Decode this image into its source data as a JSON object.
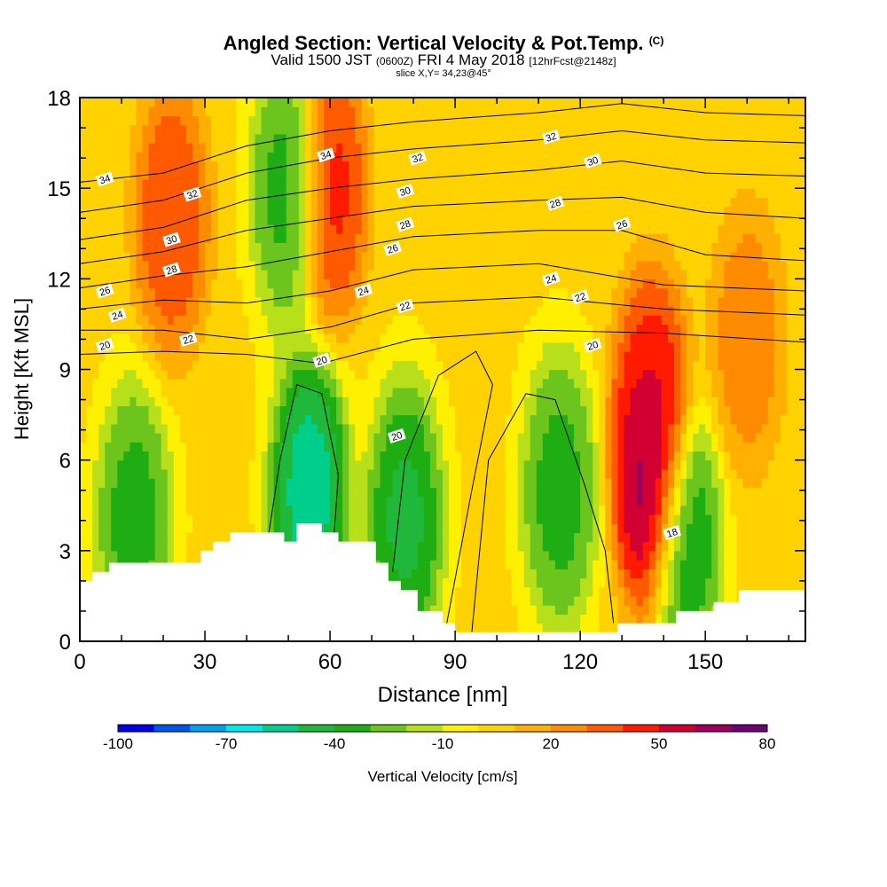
{
  "header": {
    "title_main": "Angled Section: Vertical Velocity & Pot.Temp.",
    "title_mark": "(C)",
    "valid_prefix": "Valid 1500 JST",
    "valid_utc": "(0600Z)",
    "valid_date": "FRI 4 May 2018",
    "valid_fcst": "[12hrFcst@2148z]",
    "slice_label": "slice X,Y= 34,23@45°"
  },
  "colors": {
    "bins": [
      "#0000ee",
      "#0055ee",
      "#00a0ee",
      "#00e8e8",
      "#00cf8c",
      "#1fb83a",
      "#1ead13",
      "#6cc51c",
      "#b7df1a",
      "#fff000",
      "#ffd200",
      "#ffb000",
      "#ff8c00",
      "#ff5a00",
      "#ff1a00",
      "#d20032",
      "#a0005a",
      "#6e0078"
    ],
    "contour": "#000000",
    "terrain": "#ffffff"
  },
  "chart_data": {
    "type": "heatmap",
    "xlabel": "Distance [nm]",
    "ylabel": "Height [Kft MSL]",
    "xlim": [
      0,
      174
    ],
    "ylim": [
      0,
      18
    ],
    "x_ticks": [
      "0",
      "30",
      "60",
      "90",
      "120",
      "150"
    ],
    "y_ticks": [
      "0",
      "3",
      "6",
      "9",
      "12",
      "15",
      "18"
    ],
    "colorbar": {
      "label": "Vertical Velocity [cm/s]",
      "levels": [
        -100,
        -90,
        -80,
        -70,
        -60,
        -50,
        -40,
        -30,
        -20,
        -10,
        0,
        10,
        20,
        30,
        40,
        50,
        60,
        70,
        80
      ],
      "tick_labels": [
        "-100",
        "-70",
        "-40",
        "-10",
        "20",
        "50",
        "80"
      ]
    },
    "velocity_features": [
      {
        "x": 22,
        "y": 14,
        "value": 45
      },
      {
        "x": 60,
        "y": 15,
        "value": 50
      },
      {
        "x": 55,
        "y": 5,
        "value": -65
      },
      {
        "x": 50,
        "y": 15,
        "value": -40
      },
      {
        "x": 137,
        "y": 5.5,
        "value": 80
      },
      {
        "x": 137,
        "y": 8,
        "value": 50
      },
      {
        "x": 160,
        "y": 10,
        "value": 30
      },
      {
        "x": 13,
        "y": 4,
        "value": -40
      },
      {
        "x": 115,
        "y": 5,
        "value": -40
      },
      {
        "x": 78,
        "y": 4,
        "value": -50
      },
      {
        "x": 145,
        "y": 3.5,
        "value": -45
      }
    ],
    "terrain_height": [
      [
        0,
        2.0
      ],
      [
        3,
        2.3
      ],
      [
        7,
        2.6
      ],
      [
        29,
        3.0
      ],
      [
        32,
        3.3
      ],
      [
        36,
        3.6
      ],
      [
        49,
        3.3
      ],
      [
        52,
        3.9
      ],
      [
        58,
        3.6
      ],
      [
        62,
        3.3
      ],
      [
        71,
        2.6
      ],
      [
        74,
        2.0
      ],
      [
        77,
        1.7
      ],
      [
        81,
        1.0
      ],
      [
        87,
        0.6
      ],
      [
        90,
        0.3
      ],
      [
        129,
        0.6
      ],
      [
        138,
        0.6
      ],
      [
        143,
        1.0
      ],
      [
        152,
        1.3
      ],
      [
        158,
        1.7
      ],
      [
        174,
        1.7
      ]
    ],
    "isentropes": [
      {
        "theta": 20,
        "points": [
          [
            0,
            9.5
          ],
          [
            20,
            9.6
          ],
          [
            40,
            9.5
          ],
          [
            58,
            9.2
          ],
          [
            80,
            10.0
          ],
          [
            110,
            10.3
          ],
          [
            140,
            10.2
          ],
          [
            174,
            9.9
          ]
        ]
      },
      {
        "theta": 22,
        "points": [
          [
            0,
            10.3
          ],
          [
            20,
            10.3
          ],
          [
            40,
            10.0
          ],
          [
            60,
            10.4
          ],
          [
            80,
            11.2
          ],
          [
            110,
            11.4
          ],
          [
            140,
            11.0
          ],
          [
            174,
            10.8
          ]
        ]
      },
      {
        "theta": 24,
        "points": [
          [
            0,
            11.0
          ],
          [
            20,
            11.3
          ],
          [
            40,
            11.2
          ],
          [
            60,
            11.6
          ],
          [
            80,
            12.3
          ],
          [
            110,
            12.5
          ],
          [
            140,
            11.8
          ],
          [
            174,
            11.6
          ]
        ]
      },
      {
        "theta": 26,
        "points": [
          [
            0,
            11.7
          ],
          [
            20,
            12.1
          ],
          [
            40,
            12.4
          ],
          [
            60,
            12.9
          ],
          [
            80,
            13.4
          ],
          [
            110,
            13.6
          ],
          [
            130,
            13.6
          ],
          [
            150,
            12.8
          ],
          [
            174,
            12.6
          ]
        ]
      },
      {
        "theta": 28,
        "points": [
          [
            0,
            12.5
          ],
          [
            20,
            12.9
          ],
          [
            40,
            13.6
          ],
          [
            60,
            14.0
          ],
          [
            80,
            14.4
          ],
          [
            110,
            14.6
          ],
          [
            130,
            14.7
          ],
          [
            150,
            14.2
          ],
          [
            174,
            14.0
          ]
        ]
      },
      {
        "theta": 30,
        "points": [
          [
            0,
            13.3
          ],
          [
            20,
            13.7
          ],
          [
            40,
            14.6
          ],
          [
            60,
            15.0
          ],
          [
            80,
            15.3
          ],
          [
            110,
            15.6
          ],
          [
            130,
            15.9
          ],
          [
            150,
            15.5
          ],
          [
            174,
            15.4
          ]
        ]
      },
      {
        "theta": 32,
        "points": [
          [
            0,
            14.2
          ],
          [
            20,
            14.6
          ],
          [
            40,
            15.5
          ],
          [
            60,
            16.0
          ],
          [
            80,
            16.3
          ],
          [
            110,
            16.6
          ],
          [
            130,
            16.9
          ],
          [
            150,
            16.6
          ],
          [
            174,
            16.5
          ]
        ]
      },
      {
        "theta": 34,
        "points": [
          [
            0,
            15.2
          ],
          [
            20,
            15.5
          ],
          [
            40,
            16.4
          ],
          [
            60,
            16.9
          ],
          [
            80,
            17.2
          ],
          [
            110,
            17.5
          ],
          [
            130,
            17.8
          ],
          [
            150,
            17.5
          ],
          [
            174,
            17.4
          ]
        ]
      }
    ],
    "contour_labels": [
      {
        "x": 6,
        "y": 15.3,
        "text": "34"
      },
      {
        "x": 27,
        "y": 14.8,
        "text": "32"
      },
      {
        "x": 22,
        "y": 13.3,
        "text": "30"
      },
      {
        "x": 22,
        "y": 12.3,
        "text": "28"
      },
      {
        "x": 6,
        "y": 11.6,
        "text": "26"
      },
      {
        "x": 9,
        "y": 10.8,
        "text": "24"
      },
      {
        "x": 6,
        "y": 9.8,
        "text": "20"
      },
      {
        "x": 26,
        "y": 10.0,
        "text": "22"
      },
      {
        "x": 59,
        "y": 16.1,
        "text": "34"
      },
      {
        "x": 81,
        "y": 16.0,
        "text": "32"
      },
      {
        "x": 78,
        "y": 14.9,
        "text": "30"
      },
      {
        "x": 78,
        "y": 13.8,
        "text": "28"
      },
      {
        "x": 75,
        "y": 13.0,
        "text": "26"
      },
      {
        "x": 68,
        "y": 11.6,
        "text": "24"
      },
      {
        "x": 78,
        "y": 11.1,
        "text": "22"
      },
      {
        "x": 58,
        "y": 9.3,
        "text": "20"
      },
      {
        "x": 76,
        "y": 6.8,
        "text": "20"
      },
      {
        "x": 113,
        "y": 16.7,
        "text": "32"
      },
      {
        "x": 123,
        "y": 15.9,
        "text": "30"
      },
      {
        "x": 114,
        "y": 14.5,
        "text": "28"
      },
      {
        "x": 130,
        "y": 13.8,
        "text": "26"
      },
      {
        "x": 113,
        "y": 12.0,
        "text": "24"
      },
      {
        "x": 120,
        "y": 11.4,
        "text": "22"
      },
      {
        "x": 123,
        "y": 9.8,
        "text": "20"
      },
      {
        "x": 142,
        "y": 3.6,
        "text": "18"
      }
    ],
    "cold_contours": [
      [
        [
          45,
          3.3
        ],
        [
          48,
          6.0
        ],
        [
          52,
          8.5
        ],
        [
          58,
          8.2
        ],
        [
          62,
          5.5
        ],
        [
          61,
          3.6
        ]
      ],
      [
        [
          75,
          2.3
        ],
        [
          78,
          6.0
        ],
        [
          86,
          8.8
        ],
        [
          95,
          9.6
        ],
        [
          99,
          8.5
        ],
        [
          94,
          5.0
        ],
        [
          88,
          0.6
        ]
      ],
      [
        [
          94,
          0.3
        ],
        [
          98,
          6.0
        ],
        [
          107,
          8.2
        ],
        [
          114,
          8.0
        ],
        [
          121,
          5.2
        ],
        [
          126,
          3.0
        ],
        [
          128,
          0.6
        ]
      ]
    ]
  }
}
